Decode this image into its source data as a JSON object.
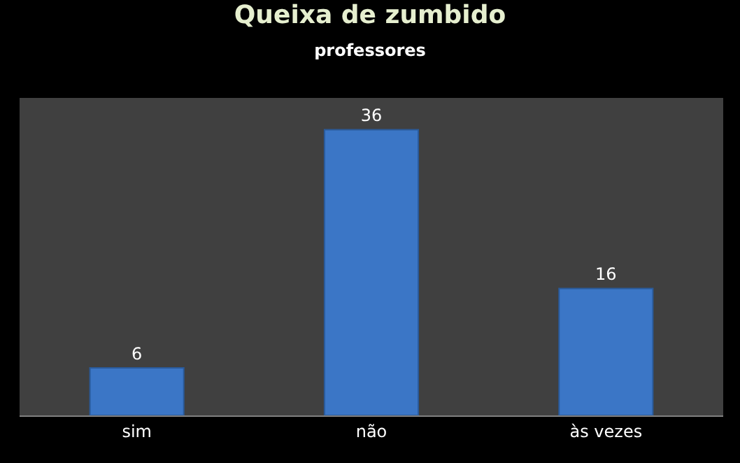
{
  "chart_data": {
    "type": "bar",
    "title": "Queixa de zumbido",
    "subtitle": "professores",
    "categories": [
      "sim",
      "não",
      "às vezes"
    ],
    "values": [
      6,
      36,
      16
    ],
    "color": "#3b76c6",
    "ylim": [
      0,
      40
    ],
    "tick_labels": "x",
    "data_labels": true
  }
}
